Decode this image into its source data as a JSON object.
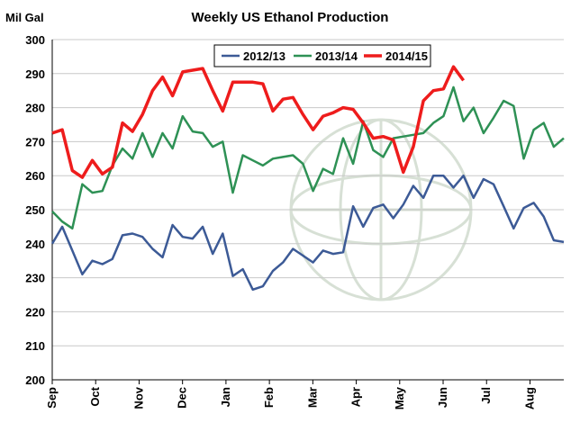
{
  "chart_data": {
    "type": "line",
    "title": "Weekly US Ethanol Production",
    "ylabel": "Mil Gal",
    "xlabel": "",
    "ylim": [
      200,
      300
    ],
    "yticks": [
      200,
      210,
      220,
      230,
      240,
      250,
      260,
      270,
      280,
      290,
      300
    ],
    "grid": "horizontal",
    "legend_position": "top-center",
    "months": [
      "Sep",
      "Oct",
      "Nov",
      "Dec",
      "Jan",
      "Feb",
      "Mar",
      "Apr",
      "May",
      "Jun",
      "Jul",
      "Aug"
    ],
    "series": [
      {
        "name": "2012/13",
        "color": "#3c5a96",
        "values": [
          240,
          245,
          238,
          231,
          235,
          234,
          235.5,
          242.5,
          243,
          242,
          238.5,
          236,
          245.5,
          242,
          241.5,
          245,
          237,
          243,
          230.5,
          232.5,
          226.5,
          227.5,
          232,
          234.5,
          238.5,
          236.5,
          234.5,
          238,
          237,
          237.5,
          251,
          245,
          250.5,
          251.5,
          247.5,
          251.5,
          257,
          253.5,
          260,
          260,
          256.5,
          260,
          253.5,
          259,
          257.5,
          251,
          244.5,
          250.5,
          252,
          248,
          241,
          240.5
        ]
      },
      {
        "name": "2013/14",
        "color": "#2e9155",
        "values": [
          249.5,
          246.5,
          244.5,
          257.5,
          255,
          255.5,
          263,
          268,
          265,
          272.5,
          265.5,
          272.5,
          268,
          277.5,
          273,
          272.5,
          268.5,
          270,
          255,
          266,
          264.5,
          263,
          265,
          265.5,
          266,
          263.5,
          255.5,
          262,
          260.5,
          271,
          263.5,
          276,
          267.5,
          265.5,
          271,
          271.5,
          272,
          272.5,
          275.5,
          277.5,
          286,
          276,
          280,
          272.5,
          277,
          282,
          280.5,
          265,
          273.5,
          275.5,
          268.5,
          271
        ]
      },
      {
        "name": "2014/15",
        "color": "#ee1c1c",
        "values": [
          272.5,
          273.5,
          261.5,
          259.5,
          264.5,
          260.5,
          262.5,
          275.5,
          273,
          278,
          285,
          289,
          283.5,
          290.5,
          291,
          291.5,
          285,
          279,
          287.5,
          287.5,
          287.5,
          287,
          279,
          282.5,
          283,
          278,
          273.5,
          277.5,
          278.5,
          280,
          279.5,
          275.5,
          271,
          271.5,
          270.5,
          261,
          268.5,
          282,
          285,
          285.5,
          292,
          288
        ]
      }
    ]
  }
}
